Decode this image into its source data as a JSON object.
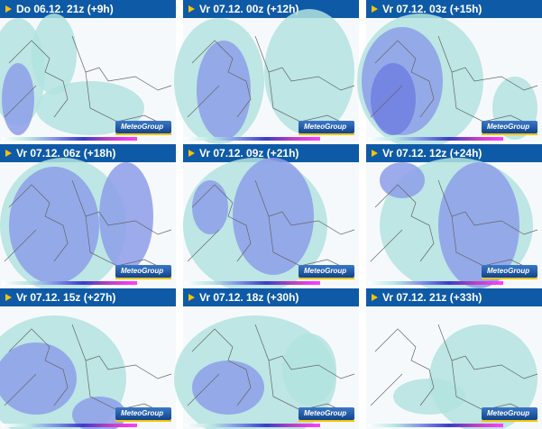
{
  "panels": [
    {
      "title": "Do 06.12. 21z (+9h)"
    },
    {
      "title": "Vr 07.12. 00z (+12h)"
    },
    {
      "title": "Vr 07.12. 03z (+15h)"
    },
    {
      "title": "Vr 07.12. 06z (+18h)"
    },
    {
      "title": "Vr 07.12. 09z (+21h)"
    },
    {
      "title": "Vr 07.12. 12z (+24h)"
    },
    {
      "title": "Vr 07.12. 15z (+27h)"
    },
    {
      "title": "Vr 07.12. 18z (+30h)"
    },
    {
      "title": "Vr 07.12. 21z (+33h)"
    }
  ],
  "logo": "MeteoGroup"
}
